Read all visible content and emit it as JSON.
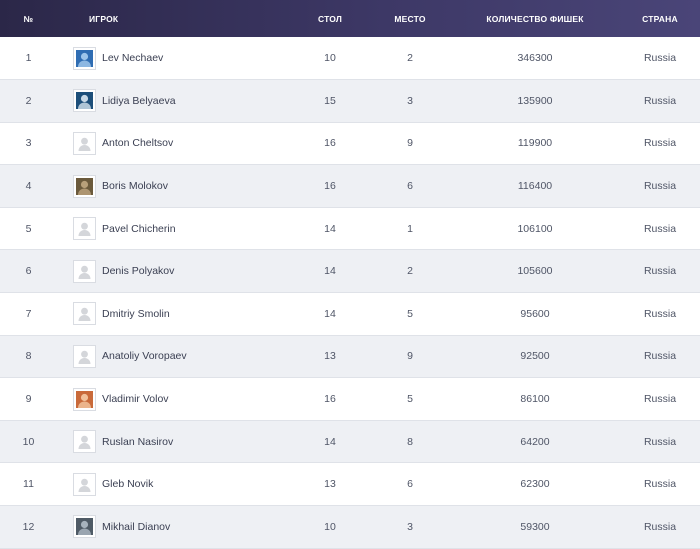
{
  "header": {
    "num": "№",
    "player": "ИГРОК",
    "table": "СТОЛ",
    "seat": "МЕСТО",
    "chips": "КОЛИЧЕСТВО ФИШЕК",
    "country": "СТРАНА"
  },
  "rows": [
    {
      "rank": "1",
      "name": "Lev Nechaev",
      "table": "10",
      "seat": "2",
      "chips": "346300",
      "country": "Russia",
      "avatar": "photo",
      "colors": [
        "#2f6db3",
        "#9cc4ea"
      ]
    },
    {
      "rank": "2",
      "name": "Lidiya Belyaeva",
      "table": "15",
      "seat": "3",
      "chips": "135900",
      "country": "Russia",
      "avatar": "photo",
      "colors": [
        "#1d4f7a",
        "#c9d9e6"
      ]
    },
    {
      "rank": "3",
      "name": "Anton Cheltsov",
      "table": "16",
      "seat": "9",
      "chips": "119900",
      "country": "Russia",
      "avatar": "placeholder",
      "colors": [
        "#d4d6da",
        "#ffffff"
      ]
    },
    {
      "rank": "4",
      "name": "Boris Molokov",
      "table": "16",
      "seat": "6",
      "chips": "116400",
      "country": "Russia",
      "avatar": "photo",
      "colors": [
        "#6b5a3c",
        "#b8a07a"
      ]
    },
    {
      "rank": "5",
      "name": "Pavel Chicherin",
      "table": "14",
      "seat": "1",
      "chips": "106100",
      "country": "Russia",
      "avatar": "placeholder",
      "colors": [
        "#d4d6da",
        "#ffffff"
      ]
    },
    {
      "rank": "6",
      "name": "Denis Polyakov",
      "table": "14",
      "seat": "2",
      "chips": "105600",
      "country": "Russia",
      "avatar": "placeholder",
      "colors": [
        "#d4d6da",
        "#ffffff"
      ]
    },
    {
      "rank": "7",
      "name": "Dmitriy Smolin",
      "table": "14",
      "seat": "5",
      "chips": "95600",
      "country": "Russia",
      "avatar": "placeholder",
      "colors": [
        "#d4d6da",
        "#ffffff"
      ]
    },
    {
      "rank": "8",
      "name": "Anatoliy Voropaev",
      "table": "13",
      "seat": "9",
      "chips": "92500",
      "country": "Russia",
      "avatar": "placeholder",
      "colors": [
        "#d4d6da",
        "#ffffff"
      ]
    },
    {
      "rank": "9",
      "name": "Vladimir Volov",
      "table": "16",
      "seat": "5",
      "chips": "86100",
      "country": "Russia",
      "avatar": "photo",
      "colors": [
        "#c96a3a",
        "#f1c19a"
      ]
    },
    {
      "rank": "10",
      "name": "Ruslan Nasirov",
      "table": "14",
      "seat": "8",
      "chips": "64200",
      "country": "Russia",
      "avatar": "placeholder",
      "colors": [
        "#d4d6da",
        "#ffffff"
      ]
    },
    {
      "rank": "11",
      "name": "Gleb Novik",
      "table": "13",
      "seat": "6",
      "chips": "62300",
      "country": "Russia",
      "avatar": "placeholder",
      "colors": [
        "#d4d6da",
        "#ffffff"
      ]
    },
    {
      "rank": "12",
      "name": "Mikhail Dianov",
      "table": "10",
      "seat": "3",
      "chips": "59300",
      "country": "Russia",
      "avatar": "photo",
      "colors": [
        "#4f5b66",
        "#a7b3bd"
      ]
    }
  ]
}
